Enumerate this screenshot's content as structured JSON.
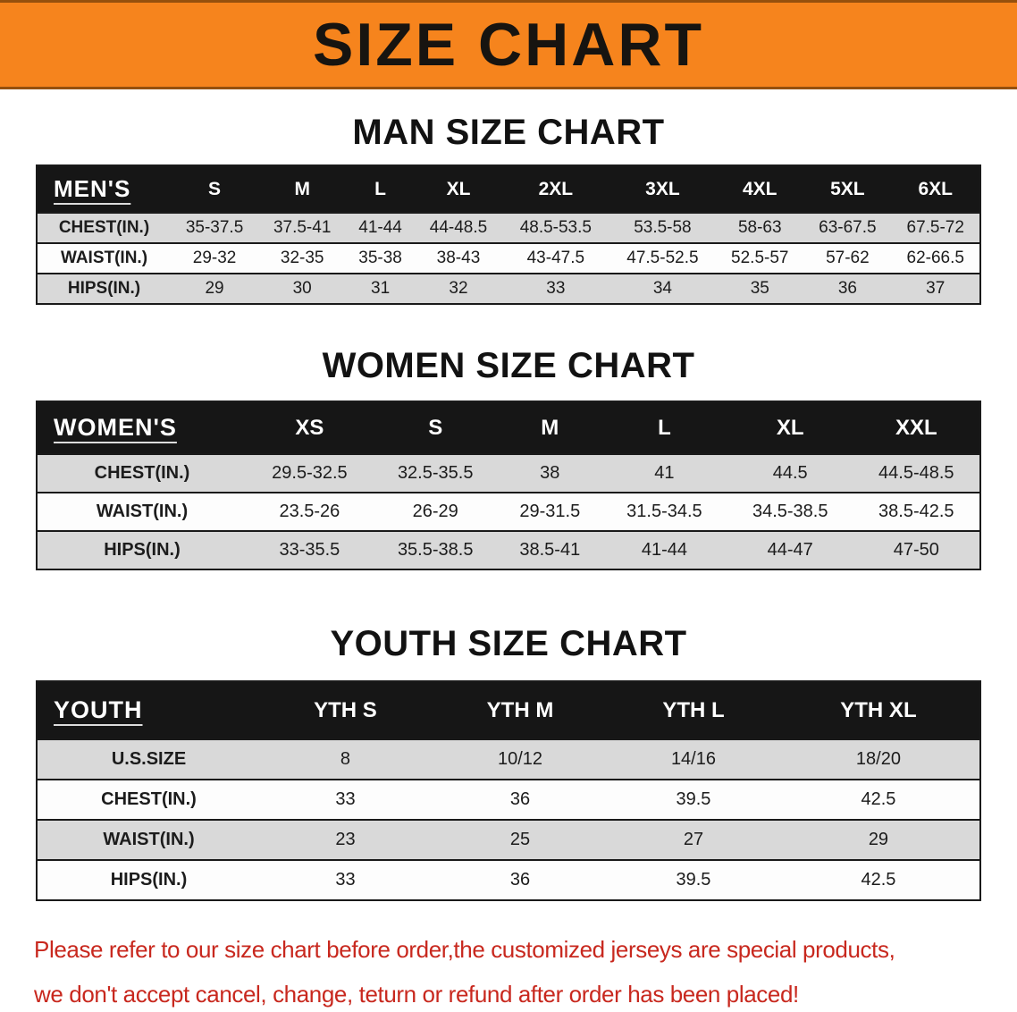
{
  "banner": {
    "title": "SIZE CHART"
  },
  "chart_data": [
    {
      "type": "table",
      "title": "MAN SIZE CHART",
      "columns": [
        "MEN'S",
        "S",
        "M",
        "L",
        "XL",
        "2XL",
        "3XL",
        "4XL",
        "5XL",
        "6XL"
      ],
      "rows": [
        [
          "CHEST(IN.)",
          "35-37.5",
          "37.5-41",
          "41-44",
          "44-48.5",
          "48.5-53.5",
          "53.5-58",
          "58-63",
          "63-67.5",
          "67.5-72"
        ],
        [
          "WAIST(IN.)",
          "29-32",
          "32-35",
          "35-38",
          "38-43",
          "43-47.5",
          "47.5-52.5",
          "52.5-57",
          "57-62",
          "62-66.5"
        ],
        [
          "HIPS(IN.)",
          "29",
          "30",
          "31",
          "32",
          "33",
          "34",
          "35",
          "36",
          "37"
        ]
      ]
    },
    {
      "type": "table",
      "title": "WOMEN SIZE CHART",
      "columns": [
        "WOMEN'S",
        "XS",
        "S",
        "M",
        "L",
        "XL",
        "XXL"
      ],
      "rows": [
        [
          "CHEST(IN.)",
          "29.5-32.5",
          "32.5-35.5",
          "38",
          "41",
          "44.5",
          "44.5-48.5"
        ],
        [
          "WAIST(IN.)",
          "23.5-26",
          "26-29",
          "29-31.5",
          "31.5-34.5",
          "34.5-38.5",
          "38.5-42.5"
        ],
        [
          "HIPS(IN.)",
          "33-35.5",
          "35.5-38.5",
          "38.5-41",
          "41-44",
          "44-47",
          "47-50"
        ]
      ]
    },
    {
      "type": "table",
      "title": "YOUTH SIZE CHART",
      "columns": [
        "YOUTH",
        "YTH S",
        "YTH M",
        "YTH L",
        "YTH XL"
      ],
      "rows": [
        [
          "U.S.SIZE",
          "8",
          "10/12",
          "14/16",
          "18/20"
        ],
        [
          "CHEST(IN.)",
          "33",
          "36",
          "39.5",
          "42.5"
        ],
        [
          "WAIST(IN.)",
          "23",
          "25",
          "27",
          "29"
        ],
        [
          "HIPS(IN.)",
          "33",
          "36",
          "39.5",
          "42.5"
        ]
      ]
    }
  ],
  "disclaimer": {
    "line1": "Please refer to our size chart before order,the customized jerseys are special products,",
    "line2": "we don't accept cancel, change, teturn or refund after order has been placed!"
  },
  "colors": {
    "banner_bg": "#F6841D",
    "table_header_bg": "#161616",
    "table_header_text": "#FFFFFF",
    "row_shaded_bg": "#D9D9D9",
    "row_plain_bg": "#FDFDFD",
    "border": "#1A1A1A",
    "disclaimer_text": "#C8281E"
  }
}
